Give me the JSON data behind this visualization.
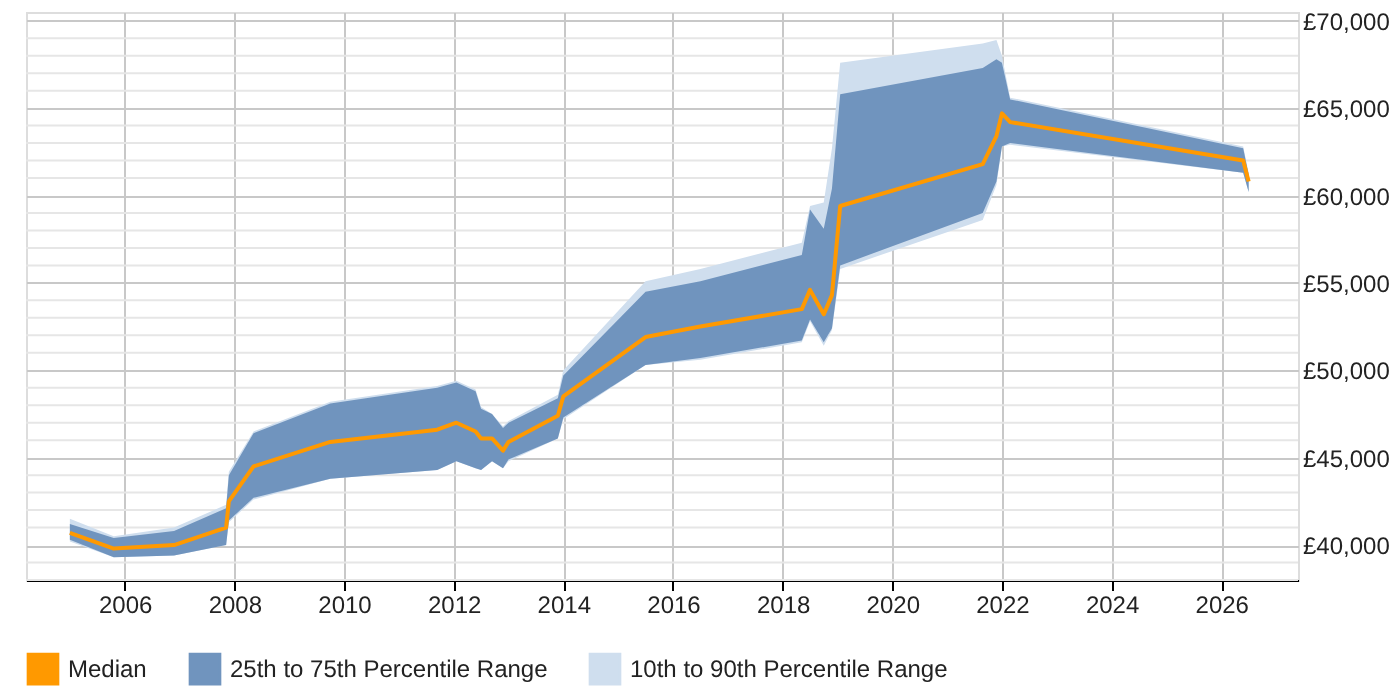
{
  "chart_data": {
    "type": "line",
    "x": [
      2005.0,
      2005.8,
      2006.9,
      2007.85,
      2007.9,
      2008.35,
      2009.75,
      2011.7,
      2012.05,
      2012.4,
      2012.5,
      2012.7,
      2012.9,
      2013.0,
      2013.9,
      2014.0,
      2015.5,
      2016.5,
      2018.35,
      2018.5,
      2018.75,
      2018.9,
      2019.05,
      2021.65,
      2021.9,
      2022.0,
      2022.15,
      2026.4,
      2026.5
    ],
    "series": [
      {
        "name": "Median",
        "color": "#ff9900",
        "values": [
          40700,
          39800,
          40000,
          41000,
          42500,
          44500,
          45900,
          46600,
          47000,
          46500,
          46100,
          46100,
          45400,
          45900,
          47400,
          48500,
          51900,
          52500,
          53500,
          54600,
          53200,
          54300,
          59400,
          61800,
          63400,
          64700,
          64200,
          62000,
          60800
        ]
      },
      {
        "name": "25th to 75th Percentile Range",
        "type": "area",
        "color": "#7094be",
        "values": [
          null,
          null,
          null,
          null,
          null,
          null,
          null,
          null,
          null,
          null,
          null,
          null,
          null,
          null,
          null,
          null,
          null,
          null,
          null,
          null,
          null,
          null,
          null,
          null,
          null,
          null,
          null,
          null,
          null
        ],
        "lower": [
          40300,
          39300,
          39400,
          40000,
          41400,
          42700,
          43800,
          44300,
          44800,
          44400,
          44300,
          44800,
          44400,
          44900,
          46100,
          47300,
          50300,
          50700,
          51700,
          52900,
          51600,
          52400,
          56000,
          59000,
          60800,
          62800,
          63000,
          61300,
          60200
        ],
        "upper": [
          41200,
          40400,
          40800,
          42100,
          44000,
          46400,
          48100,
          49000,
          49300,
          48800,
          47800,
          47500,
          46700,
          47000,
          48400,
          49700,
          54500,
          55100,
          56600,
          59200,
          58100,
          60400,
          65800,
          67300,
          67800,
          67600,
          65500,
          62700,
          61200
        ]
      },
      {
        "name": "10th to 90th Percentile Range",
        "type": "area",
        "color": "#cfdeee",
        "values": [
          null,
          null,
          null,
          null,
          null,
          null,
          null,
          null,
          null,
          null,
          null,
          null,
          null,
          null,
          null,
          null,
          null,
          null,
          null,
          null,
          null,
          null,
          null,
          null,
          null,
          null,
          null,
          null,
          null
        ],
        "lower": [
          40200,
          39300,
          39400,
          40000,
          41300,
          42600,
          43800,
          44300,
          44800,
          44400,
          44300,
          44800,
          44400,
          44800,
          46100,
          47200,
          50300,
          50600,
          51600,
          52800,
          51400,
          52300,
          55800,
          58600,
          60600,
          62800,
          62900,
          61300,
          60200
        ],
        "upper": [
          41500,
          40500,
          41000,
          42300,
          44200,
          46500,
          48200,
          49100,
          49400,
          48900,
          47900,
          47500,
          46800,
          47100,
          48600,
          50000,
          55100,
          55800,
          57300,
          59400,
          59600,
          62700,
          67600,
          68700,
          68900,
          68000,
          65600,
          62800,
          61300
        ]
      }
    ],
    "xlim": [
      2004.2,
      2027.4
    ],
    "xticks": [
      2006,
      2008,
      2010,
      2012,
      2014,
      2016,
      2018,
      2020,
      2022,
      2024,
      2026
    ],
    "ylim": [
      38000,
      70500
    ],
    "yticks": [
      {
        "value": 38000,
        "label": null
      },
      {
        "value": 39000,
        "label": null
      },
      {
        "value": 40000,
        "label": "£40,000"
      },
      {
        "value": 41000,
        "label": null
      },
      {
        "value": 42000,
        "label": null
      },
      {
        "value": 43000,
        "label": null
      },
      {
        "value": 44000,
        "label": null
      },
      {
        "value": 45000,
        "label": "£45,000"
      },
      {
        "value": 46000,
        "label": null
      },
      {
        "value": 47000,
        "label": null
      },
      {
        "value": 48000,
        "label": null
      },
      {
        "value": 49000,
        "label": null
      },
      {
        "value": 50000,
        "label": "£50,000"
      },
      {
        "value": 51000,
        "label": null
      },
      {
        "value": 52000,
        "label": null
      },
      {
        "value": 53000,
        "label": null
      },
      {
        "value": 54000,
        "label": null
      },
      {
        "value": 55000,
        "label": "£55,000"
      },
      {
        "value": 56000,
        "label": null
      },
      {
        "value": 57000,
        "label": null
      },
      {
        "value": 58000,
        "label": null
      },
      {
        "value": 59000,
        "label": null
      },
      {
        "value": 60000,
        "label": "£60,000"
      },
      {
        "value": 61000,
        "label": null
      },
      {
        "value": 62000,
        "label": null
      },
      {
        "value": 63000,
        "label": null
      },
      {
        "value": 64000,
        "label": null
      },
      {
        "value": 65000,
        "label": "£65,000"
      },
      {
        "value": 66000,
        "label": null
      },
      {
        "value": 67000,
        "label": null
      },
      {
        "value": 68000,
        "label": null
      },
      {
        "value": 69000,
        "label": null
      },
      {
        "value": 70000,
        "label": "£70,000"
      }
    ],
    "grid": true,
    "legend": "bottom"
  }
}
